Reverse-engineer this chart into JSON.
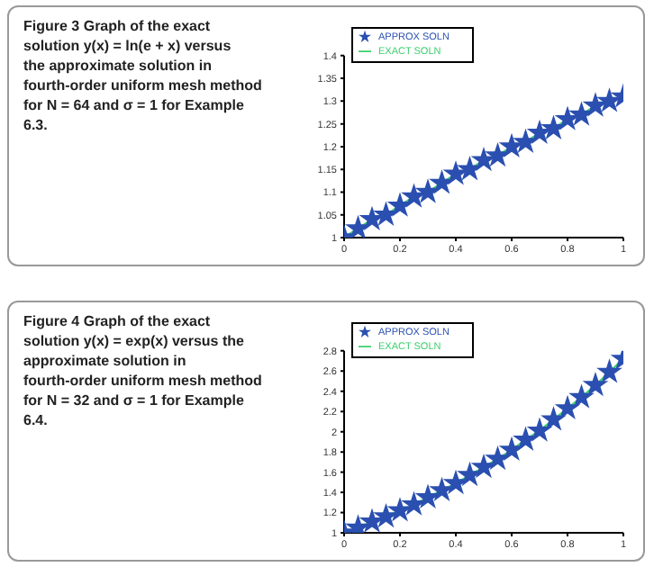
{
  "chart_data": [
    {
      "type": "line",
      "title": "Figure 3  Graph of the exact solution y(x) = ln(e + x) versus the approximate solution in fourth-order uniform mesh method for N = 64 and σ = 1 for Example 6.3.",
      "x": [
        0,
        0.05,
        0.1,
        0.15,
        0.2,
        0.25,
        0.3,
        0.35,
        0.4,
        0.45,
        0.5,
        0.55,
        0.6,
        0.65,
        0.7,
        0.75,
        0.8,
        0.85,
        0.9,
        0.95,
        1
      ],
      "series": [
        {
          "name": "APPROX SOLN",
          "type": "scatter",
          "marker": "star",
          "color": "#2a4fb0",
          "values": [
            1.0,
            1.02,
            1.04,
            1.05,
            1.07,
            1.09,
            1.1,
            1.12,
            1.14,
            1.15,
            1.17,
            1.18,
            1.2,
            1.21,
            1.23,
            1.24,
            1.26,
            1.27,
            1.29,
            1.3,
            1.31
          ]
        },
        {
          "name": "EXACT SOLN",
          "color": "#3ccf6e",
          "values": [
            1.0,
            1.02,
            1.04,
            1.05,
            1.07,
            1.09,
            1.1,
            1.12,
            1.14,
            1.15,
            1.17,
            1.18,
            1.2,
            1.21,
            1.23,
            1.24,
            1.26,
            1.27,
            1.29,
            1.3,
            1.31
          ]
        }
      ],
      "xlim": [
        0,
        1
      ],
      "xticks": [
        0,
        0.2,
        0.4,
        0.6,
        0.8,
        1
      ],
      "ylim": [
        1,
        1.4
      ],
      "yticks": [
        1,
        1.05,
        1.1,
        1.15,
        1.2,
        1.25,
        1.3,
        1.35,
        1.4
      ],
      "legend": "top left",
      "grid": false
    },
    {
      "type": "line",
      "title": "Figure 4  Graph of the exact solution y(x) = exp(x) versus the approximate solution in fourth-order uniform mesh method for N = 32 and σ = 1 for Example 6.4.",
      "x": [
        0,
        0.05,
        0.1,
        0.15,
        0.2,
        0.25,
        0.3,
        0.35,
        0.4,
        0.45,
        0.5,
        0.55,
        0.6,
        0.65,
        0.7,
        0.75,
        0.8,
        0.85,
        0.9,
        0.95,
        1
      ],
      "series": [
        {
          "name": "APPROX SOLN",
          "type": "scatter",
          "marker": "star",
          "color": "#2a4fb0",
          "values": [
            1.0,
            1.05,
            1.11,
            1.16,
            1.22,
            1.28,
            1.35,
            1.42,
            1.49,
            1.57,
            1.65,
            1.73,
            1.82,
            1.92,
            2.01,
            2.12,
            2.23,
            2.34,
            2.46,
            2.59,
            2.72
          ]
        },
        {
          "name": "EXACT SOLN",
          "color": "#3ccf6e",
          "values": [
            1.0,
            1.05,
            1.11,
            1.16,
            1.22,
            1.28,
            1.35,
            1.42,
            1.49,
            1.57,
            1.65,
            1.73,
            1.82,
            1.92,
            2.01,
            2.12,
            2.23,
            2.34,
            2.46,
            2.59,
            2.72
          ]
        }
      ],
      "xlim": [
        0,
        1
      ],
      "xticks": [
        0,
        0.2,
        0.4,
        0.6,
        0.8,
        1
      ],
      "ylim": [
        1,
        2.8
      ],
      "yticks": [
        1,
        1.2,
        1.4,
        1.6,
        1.8,
        2,
        2.2,
        2.4,
        2.6,
        2.8
      ],
      "legend": "top left",
      "grid": false
    }
  ]
}
